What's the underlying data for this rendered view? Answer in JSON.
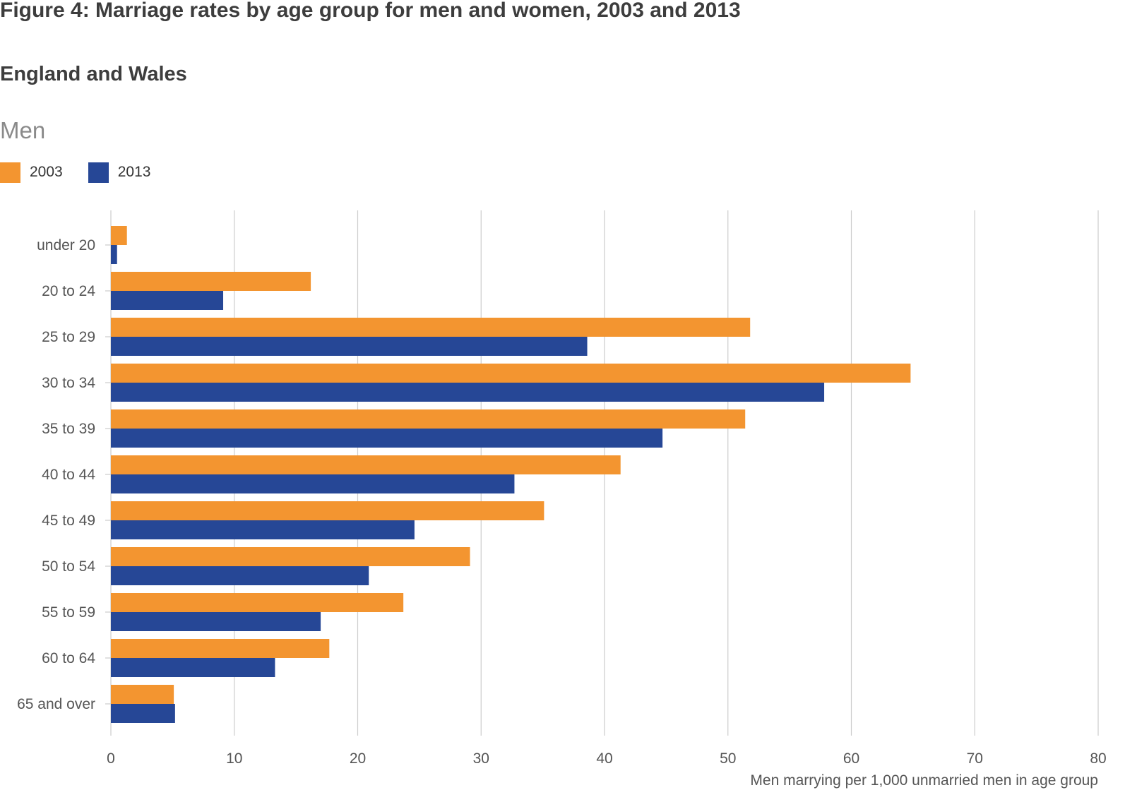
{
  "header": {
    "title": "Figure 4: Marriage rates by age group for men and women, 2003 and 2013",
    "subtitle": "England and Wales",
    "panel_title": "Men"
  },
  "colors": {
    "series_2003": "#f39530",
    "series_2013": "#264796",
    "grid": "#cccccc",
    "text": "#555555"
  },
  "chart_data": {
    "type": "bar",
    "orientation": "horizontal",
    "title": "Men",
    "categories": [
      "under 20",
      "20 to 24",
      "25 to 29",
      "30 to 34",
      "35 to 39",
      "40 to 44",
      "45 to 49",
      "50 to 54",
      "55 to 59",
      "60 to 64",
      "65 and over"
    ],
    "series": [
      {
        "name": "2003",
        "color": "#f39530",
        "values": [
          1.3,
          16.2,
          51.8,
          64.8,
          51.4,
          41.3,
          35.1,
          29.1,
          23.7,
          17.7,
          5.1
        ]
      },
      {
        "name": "2013",
        "color": "#264796",
        "values": [
          0.5,
          9.1,
          38.6,
          57.8,
          44.7,
          32.7,
          24.6,
          20.9,
          17.0,
          13.3,
          5.2
        ]
      }
    ],
    "xlabel": "Men marrying per 1,000 unmarried men in age group",
    "xlim": [
      0,
      80
    ],
    "xticks": [
      0,
      10,
      20,
      30,
      40,
      50,
      60,
      70,
      80
    ],
    "grid": true,
    "legend": "top-left"
  }
}
